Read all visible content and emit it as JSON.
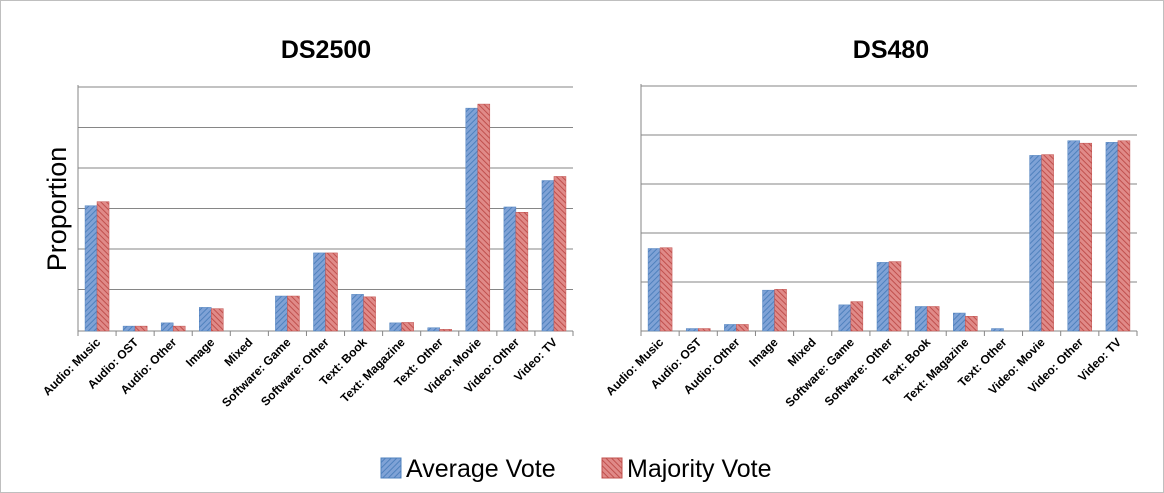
{
  "legend": {
    "series": [
      {
        "name": "Average Vote",
        "color": "#4f81bd"
      },
      {
        "name": "Majority Vote",
        "color": "#c0504d"
      }
    ],
    "placement": "bottom"
  },
  "chart_data": [
    {
      "type": "bar",
      "title": "DS2500",
      "ylabel": "Proportion",
      "xlabel": "",
      "ylim": [
        0,
        6
      ],
      "grid": true,
      "y_tick_labels": false,
      "categories": [
        "Audio: Music",
        "Audio: OST",
        "Audio: Other",
        "Image",
        "Mixed",
        "Software: Game",
        "Software: Other",
        "Text: Book",
        "Text: Magazine",
        "Text: Other",
        "Video: Movie",
        "Video: Other",
        "Video: TV"
      ],
      "series": [
        {
          "name": "Average Vote",
          "values": [
            3.08,
            0.12,
            0.2,
            0.58,
            0,
            0.86,
            1.92,
            0.9,
            0.2,
            0.08,
            5.48,
            3.05,
            3.7
          ]
        },
        {
          "name": "Majority Vote",
          "values": [
            3.18,
            0.12,
            0.12,
            0.55,
            0,
            0.86,
            1.92,
            0.84,
            0.21,
            0.04,
            5.58,
            2.92,
            3.8
          ]
        }
      ]
    },
    {
      "type": "bar",
      "title": "DS480",
      "ylabel": "",
      "xlabel": "",
      "ylim": [
        0,
        6
      ],
      "grid": true,
      "y_tick_labels": false,
      "categories": [
        "Audio: Music",
        "Audio: OST",
        "Audio: Other",
        "Image",
        "Mixed",
        "Software: Game",
        "Software: Other",
        "Text: Book",
        "Text: Magazine",
        "Text: Other",
        "Video: Movie",
        "Video: Other",
        "Video: TV"
      ],
      "series": [
        {
          "name": "Average Vote",
          "values": [
            2.02,
            0.06,
            0.16,
            1.0,
            0,
            0.64,
            1.68,
            0.6,
            0.44,
            0.06,
            4.3,
            4.66,
            4.62
          ]
        },
        {
          "name": "Majority Vote",
          "values": [
            2.04,
            0.06,
            0.16,
            1.02,
            0,
            0.72,
            1.7,
            0.6,
            0.36,
            0,
            4.32,
            4.6,
            4.66
          ]
        }
      ]
    }
  ]
}
